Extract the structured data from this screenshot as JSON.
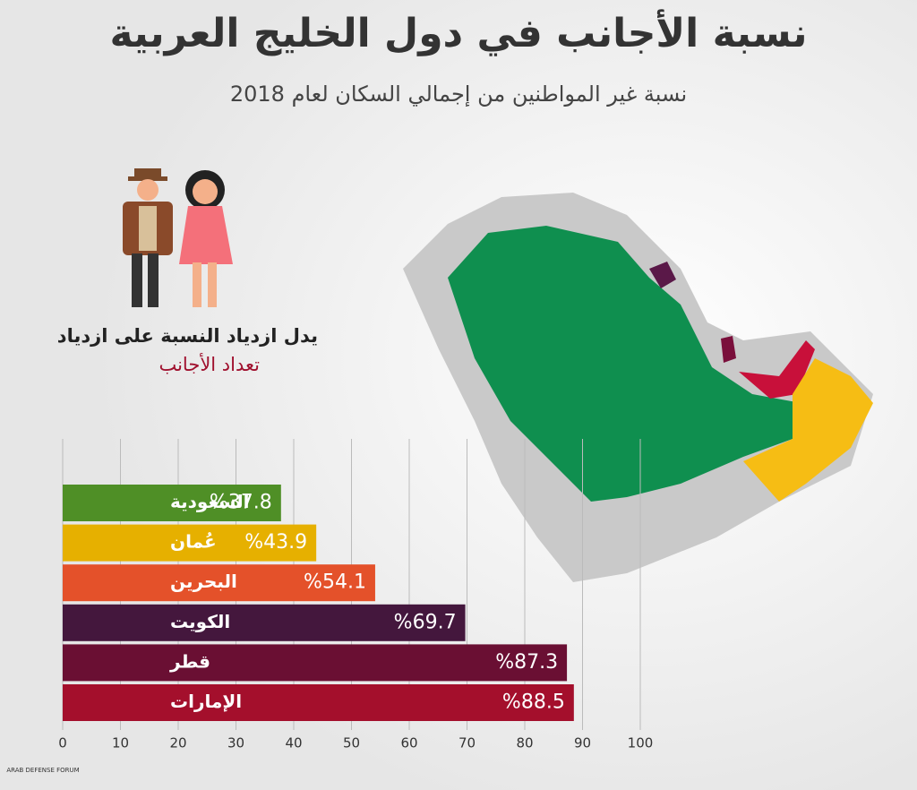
{
  "chart_data": {
    "type": "hbar",
    "title": "نسبة الأجانب في دول الخليج العربية",
    "subtitle": "نسبة غير المواطنين من إجمالي السكان لعام 2018",
    "annotation": [
      "يدل ازدياد النسبة على ازدياد",
      "تعداد الأجانب"
    ],
    "watermark": "ARAB DEFENSE FORUM",
    "categories": [
      "السعودية",
      "عُمان",
      "البحرين",
      "الكويت",
      "قطر",
      "الإمارات"
    ],
    "values": [
      37.8,
      43.9,
      54.1,
      69.7,
      87.3,
      88.5
    ],
    "value_labels": [
      "%37.8",
      "%43.9",
      "%54.1",
      "%69.7",
      "%87.3",
      "%88.5"
    ],
    "colors": [
      "#4f8f26",
      "#e6b000",
      "#e4512a",
      "#44173d",
      "#6a0f33",
      "#a40f2c"
    ],
    "xlim": [
      0,
      100
    ],
    "xticks": [
      0,
      10,
      20,
      30,
      40,
      50,
      60,
      70,
      80,
      90,
      100
    ],
    "grid": true
  }
}
